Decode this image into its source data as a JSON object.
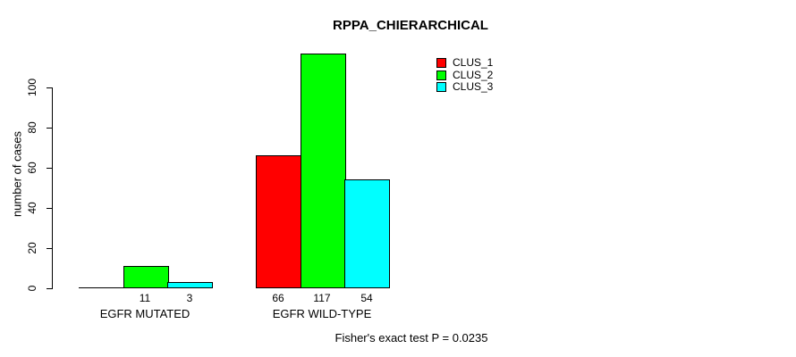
{
  "title": "RPPA_CHIERARCHICAL",
  "ylabel": "number of cases",
  "annotation": "Fisher's exact test P = 0.0235",
  "legend": {
    "items": [
      {
        "label": "CLUS_1",
        "color": "#ff0000"
      },
      {
        "label": "CLUS_2",
        "color": "#00ff00"
      },
      {
        "label": "CLUS_3",
        "color": "#00ffff"
      }
    ]
  },
  "chart_data": {
    "type": "bar",
    "title": "RPPA_CHIERARCHICAL",
    "ylabel": "number of cases",
    "xlabel": "",
    "categories": [
      "EGFR MUTATED",
      "EGFR WILD-TYPE"
    ],
    "series": [
      {
        "name": "CLUS_1",
        "color": "#ff0000",
        "values": [
          0,
          66
        ]
      },
      {
        "name": "CLUS_2",
        "color": "#00ff00",
        "values": [
          11,
          117
        ]
      },
      {
        "name": "CLUS_3",
        "color": "#00ffff",
        "values": [
          3,
          54
        ]
      }
    ],
    "bar_value_labels_shown": [
      [
        null,
        "11",
        "3"
      ],
      [
        "66",
        "117",
        "54"
      ]
    ],
    "yticks": [
      0,
      20,
      40,
      60,
      80,
      100
    ],
    "ylim": [
      0,
      120
    ],
    "grid": false,
    "legend_position": "top-right",
    "annotation": "Fisher's exact test P = 0.0235",
    "bar_border_color": "#000000"
  }
}
